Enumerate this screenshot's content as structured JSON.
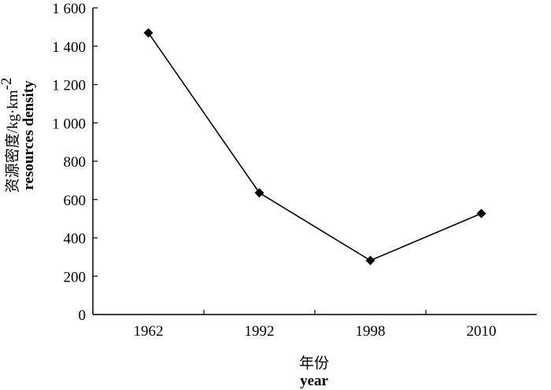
{
  "chart_data": {
    "type": "line",
    "categories": [
      "1962",
      "1992",
      "1998",
      "2010"
    ],
    "series": [
      {
        "values": [
          1470,
          635,
          282,
          527
        ]
      }
    ],
    "ylim": [
      0,
      1600
    ],
    "yticks": [
      0,
      200,
      400,
      600,
      800,
      1000,
      1200,
      1400,
      1600
    ],
    "ytick_labels": [
      "0",
      "200",
      "400",
      "600",
      "800",
      "1 000",
      "1 200",
      "1 400",
      "1 600"
    ],
    "xlabel_cn": "年份",
    "xlabel_en": "year",
    "ylabel_cn": "资源密度",
    "ylabel_unit": "/kg·km",
    "ylabel_unit_sup": "-2",
    "ylabel_en": "resources density",
    "grid": false,
    "marker": "diamond",
    "line_color": "#000000"
  }
}
